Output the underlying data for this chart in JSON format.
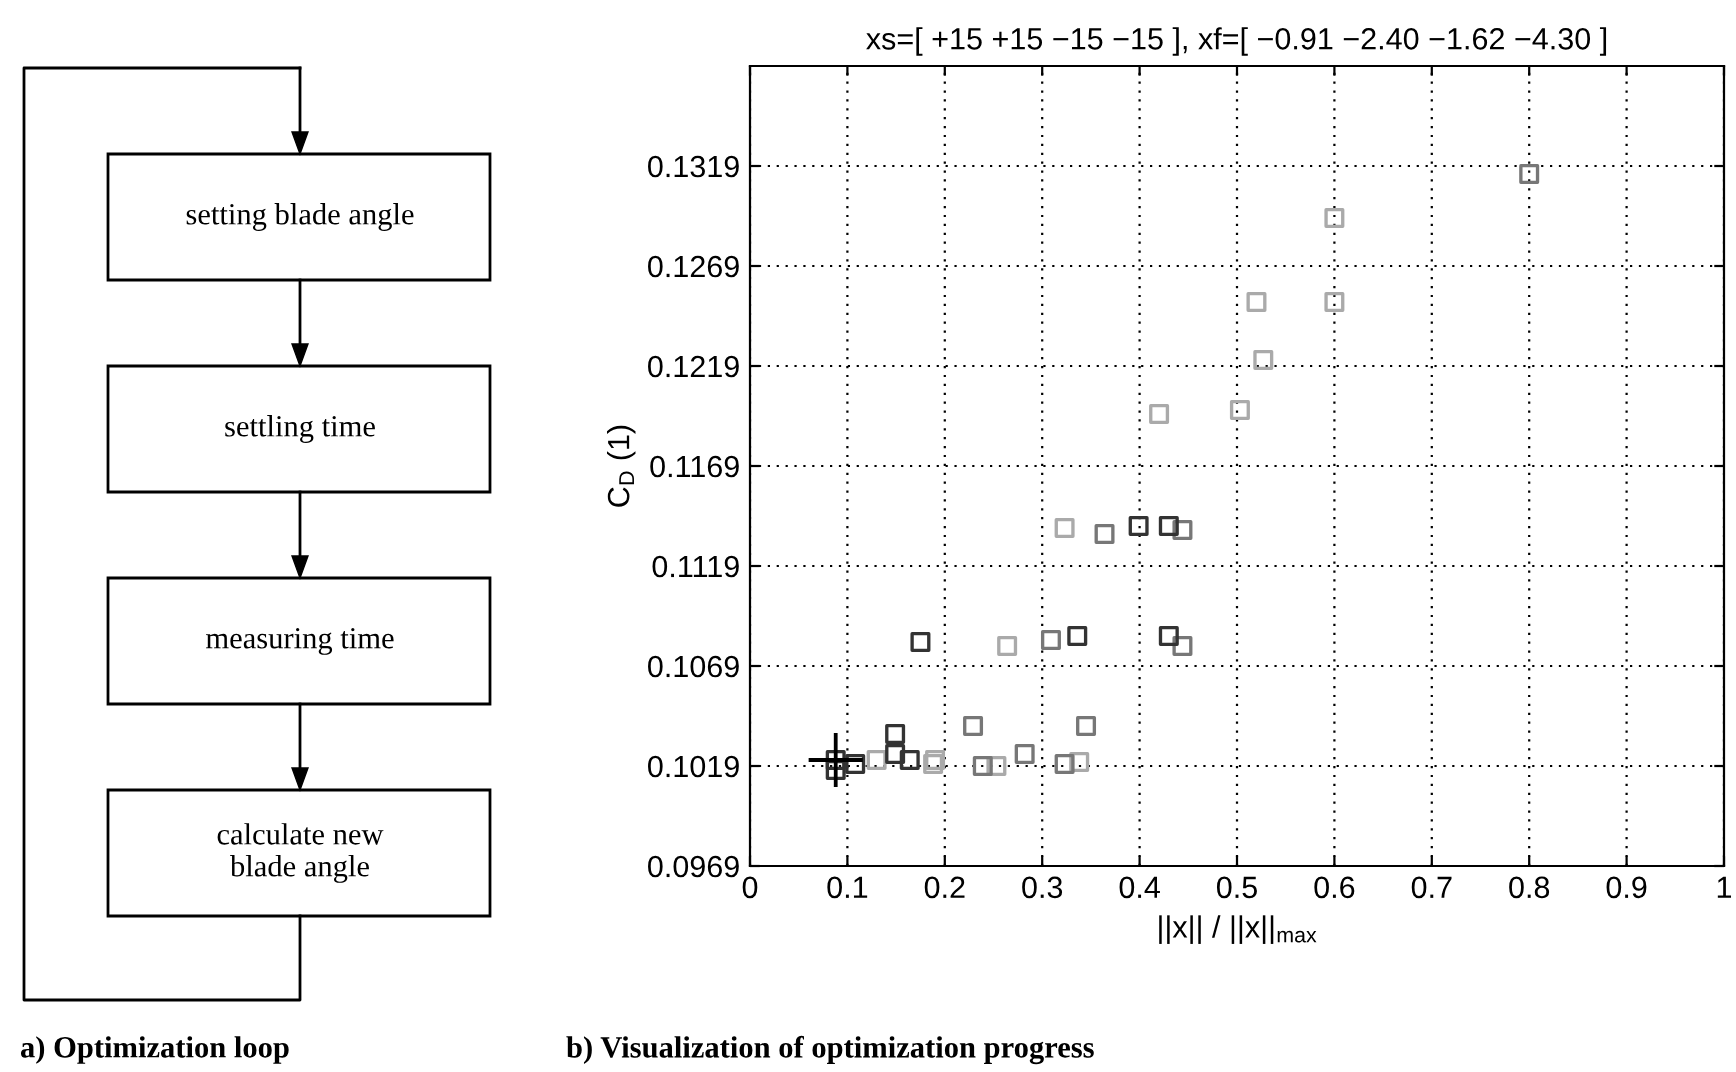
{
  "chart_data": [
    {
      "type": "other",
      "title": "a) Optimization loop",
      "annotations": [
        "setting blade angle",
        "settling time",
        "measuring time",
        "calculate new\nblade angle"
      ]
    },
    {
      "type": "scatter",
      "title": "xs=[ +15 +15 −15 −15 ], xf=[ −0.91 −2.40 −1.62 −4.30 ]",
      "xlabel": "||x|| / ||x||$_{max}$",
      "ylabel": "C$_{D}$ (1)",
      "annotations": [
        "b) Visualization of optimization progress"
      ],
      "xlim": [
        0,
        1
      ],
      "ylim": [
        0.0969,
        0.1369
      ],
      "xticks": [
        0,
        0.1,
        0.2,
        0.3,
        0.4,
        0.5,
        0.6,
        0.7,
        0.8,
        0.9,
        1
      ],
      "yticks": [
        0.0969,
        0.1019,
        0.1069,
        0.1119,
        0.1169,
        0.1219,
        0.1269,
        0.1319
      ],
      "grid": true,
      "marker": "square",
      "series": [
        {
          "color": "#aaaaaa",
          "x": [
            0.6,
            0.52,
            0.6,
            0.527,
            0.42,
            0.503,
            0.323,
            0.264,
            0.188,
            0.19,
            0.13,
            0.253,
            0.338
          ],
          "values": [
            0.1293,
            0.1251,
            0.1251,
            0.1222,
            0.1195,
            0.1197,
            0.1138,
            0.1079,
            0.102,
            0.1022,
            0.1022,
            0.1019,
            0.1021
          ]
        },
        {
          "color": "#777777",
          "x": [
            0.8,
            0.364,
            0.444,
            0.309,
            0.444,
            0.229,
            0.345,
            0.239,
            0.282,
            0.323
          ],
          "values": [
            0.1315,
            0.1135,
            0.1137,
            0.1082,
            0.1079,
            0.1039,
            0.1039,
            0.1019,
            0.1025,
            0.102
          ]
        },
        {
          "color": "#333333",
          "x": [
            0.399,
            0.43,
            0.175,
            0.336,
            0.43,
            0.149,
            0.149,
            0.164,
            0.108,
            0.088,
            0.088
          ],
          "values": [
            0.1139,
            0.1139,
            0.1081,
            0.1084,
            0.1084,
            0.1035,
            0.1025,
            0.1022,
            0.102,
            0.1022,
            0.1017
          ]
        },
        {
          "color": "#000000",
          "marker": "cross",
          "x": [
            0.088
          ],
          "values": [
            0.1022
          ]
        }
      ]
    }
  ]
}
